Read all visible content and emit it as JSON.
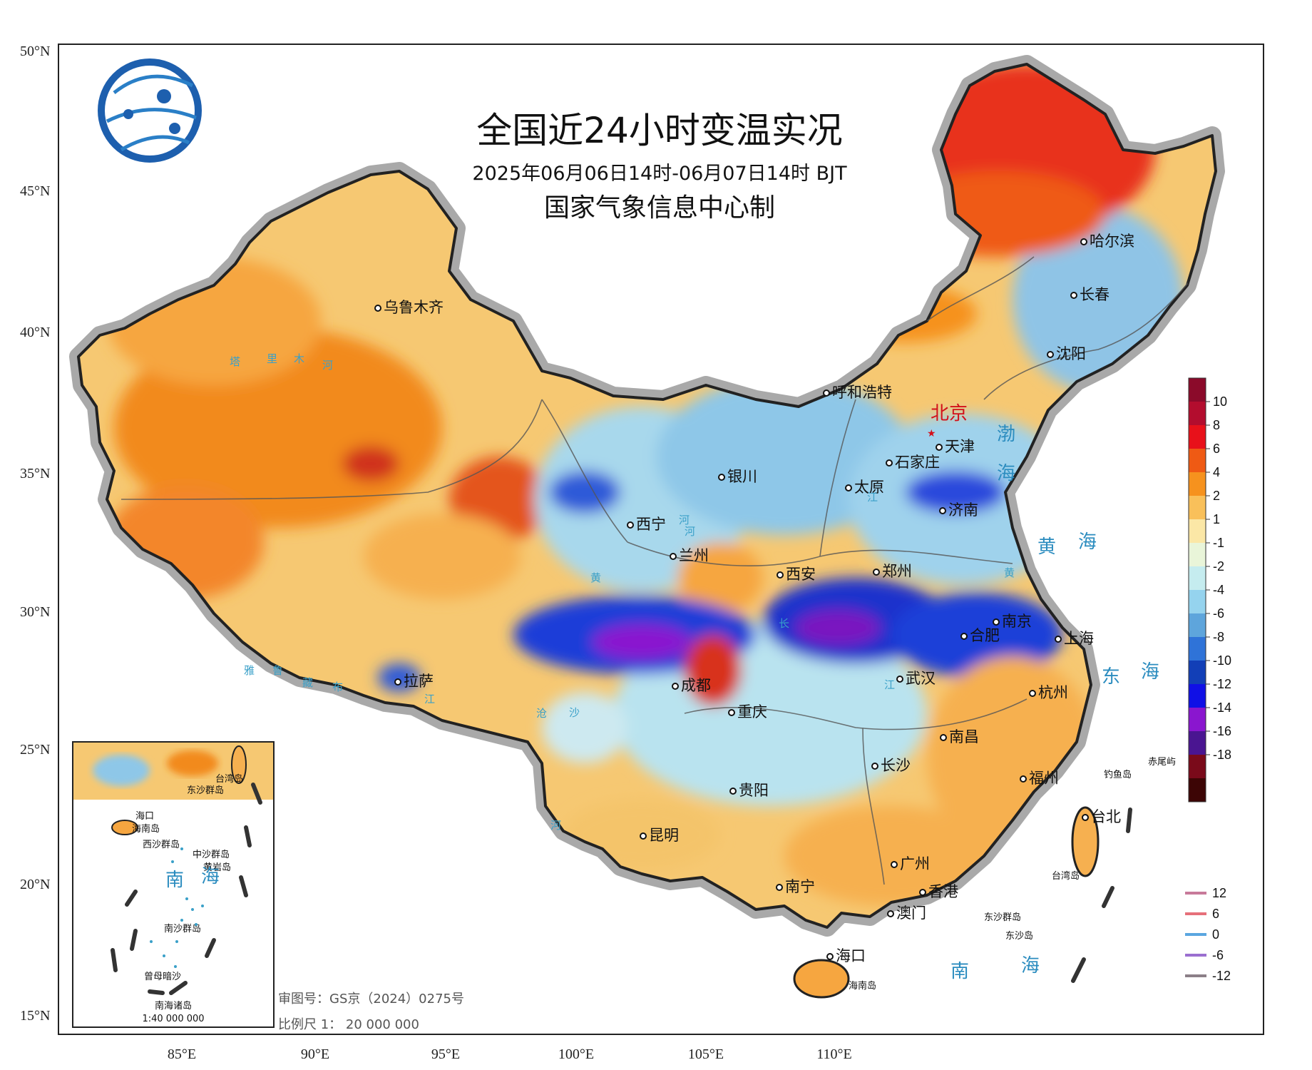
{
  "map": {
    "title": "全国近24小时变温实况",
    "subtitle": "2025年06月06日14时-06月07日14时 BJT",
    "producer": "国家气象信息中心制",
    "approval": "审图号：GS京（2024）0275号",
    "scale": "比例尺 1： 20 000 000"
  },
  "axes": {
    "lat_labels": [
      "50°N",
      "45°N",
      "40°N",
      "35°N",
      "30°N",
      "25°N",
      "20°N",
      "15°N"
    ],
    "lon_labels": [
      "85°E",
      "90°E",
      "95°E",
      "100°E",
      "105°E",
      "110°E"
    ]
  },
  "capital": "北京",
  "cities": [
    "乌鲁木齐",
    "哈尔滨",
    "长春",
    "沈阳",
    "呼和浩特",
    "天津",
    "石家庄",
    "银川",
    "西宁",
    "太原",
    "济南",
    "兰州",
    "西安",
    "郑州",
    "合肥",
    "南京",
    "上海",
    "拉萨",
    "成都",
    "重庆",
    "武汉",
    "杭州",
    "南昌",
    "长沙",
    "贵阳",
    "福州",
    "台北",
    "昆明",
    "广州",
    "南宁",
    "香港",
    "澳门",
    "海口"
  ],
  "islands": [
    "钓鱼岛",
    "赤尾屿",
    "台湾岛",
    "东沙群岛",
    "东沙岛",
    "海南岛"
  ],
  "seas": [
    "渤",
    "海",
    "黄",
    "海",
    "东",
    "海",
    "南",
    "海"
  ],
  "rivers": [
    "塔",
    "里",
    "木",
    "河",
    "黄",
    "河",
    "长",
    "江",
    "沧",
    "沙",
    "河",
    "雅",
    "鲁",
    "藏",
    "布",
    "江",
    "黄",
    "河",
    "江"
  ],
  "inset": {
    "title": "南海诸岛",
    "scale": "1:40 000 000",
    "labels": [
      "海口",
      "海南岛",
      "东沙群岛",
      "台湾岛",
      "西沙群岛",
      "中沙群岛",
      "黄岩岛",
      "南",
      "海",
      "南沙群岛",
      "曾母暗沙"
    ]
  },
  "colorbar": {
    "labels": [
      "10",
      "8",
      "6",
      "4",
      "2",
      "1",
      "-1",
      "-2",
      "-4",
      "-6",
      "-8",
      "-10",
      "-12",
      "-14",
      "-16",
      "-18"
    ],
    "colors": [
      "#8b0a2a",
      "#b30d2e",
      "#e8111a",
      "#ef5a14",
      "#f6921e",
      "#f9c05a",
      "#fbe7a6",
      "#e9f5d9",
      "#c5ecef",
      "#95d3ee",
      "#5ea5dc",
      "#2f73d8",
      "#123fb7",
      "#1010e6",
      "#8a16cf",
      "#4a1591",
      "#7a0a1a",
      "#3d0505"
    ]
  },
  "line_legend": {
    "values": [
      "12",
      "6",
      "0",
      "-6",
      "-12"
    ],
    "colors": [
      "#c87a9a",
      "#e6707a",
      "#5aa6e0",
      "#9b6fd0",
      "#8c7f88"
    ]
  }
}
